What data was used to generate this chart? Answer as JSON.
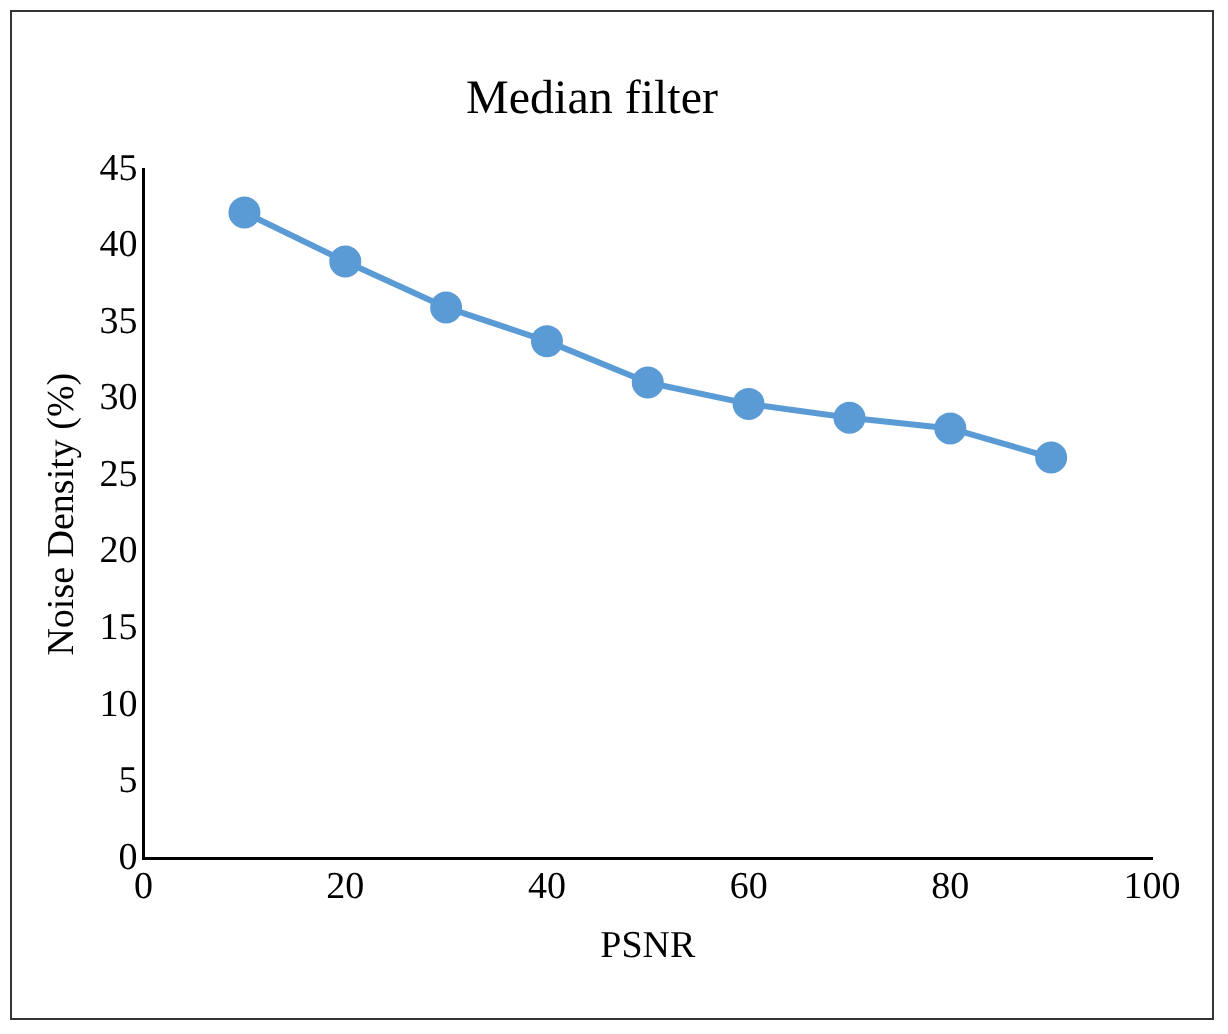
{
  "chart_data": {
    "type": "line",
    "title": "Median filter",
    "xlabel": "PSNR",
    "ylabel": "Noise Density (%)",
    "x": [
      10,
      20,
      30,
      40,
      50,
      60,
      70,
      80,
      90
    ],
    "series": [
      {
        "color": "#5b9bd5",
        "values": [
          42.2,
          39,
          36,
          33.8,
          31.1,
          29.7,
          28.8,
          28.1,
          26.2
        ]
      }
    ],
    "xlim": [
      0,
      100
    ],
    "xticks": [
      0,
      20,
      40,
      60,
      80,
      100
    ],
    "ylim": [
      0,
      45
    ],
    "yticks": [
      0,
      5,
      10,
      15,
      20,
      25,
      30,
      35,
      40,
      45
    ],
    "grid": false,
    "legend": false,
    "marker": "circle",
    "line_style": "solid"
  }
}
